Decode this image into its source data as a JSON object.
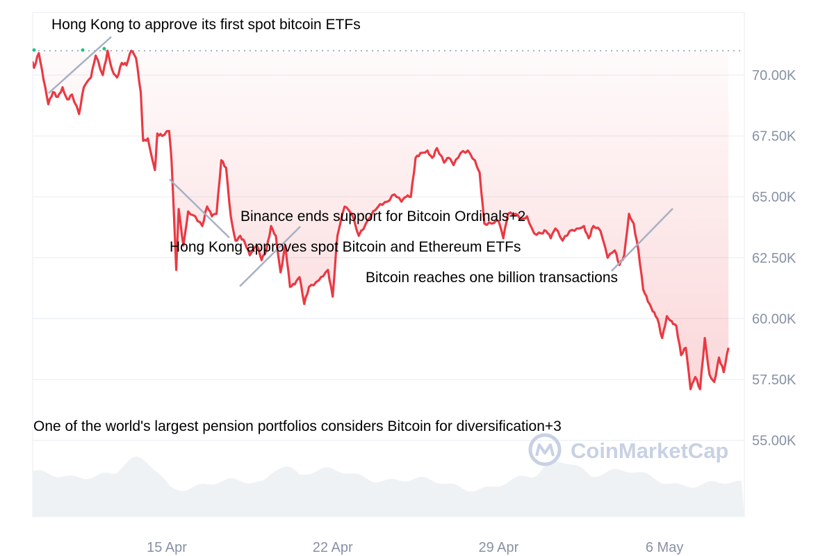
{
  "chart_data": {
    "type": "line",
    "y_ticks": [
      "70.00K",
      "67.50K",
      "65.00K",
      "62.50K",
      "60.00K",
      "57.50K",
      "55.00K"
    ],
    "y_tick_values": [
      70000,
      67500,
      65000,
      62500,
      60000,
      57500,
      55000
    ],
    "x_ticks": [
      "15 Apr",
      "22 Apr",
      "29 Apr",
      "6 May"
    ],
    "x_tick_days": [
      15,
      22,
      29,
      36
    ],
    "ylim": [
      55000,
      71000
    ],
    "xlim_days": [
      9.25,
      39.3
    ],
    "reference_value": 71000,
    "grid": true,
    "colors": {
      "line": "#ea3943",
      "fill": "#ea3943",
      "reference": "#a6b0c3",
      "grid": "#eff2f5",
      "volume": "#eff2f5",
      "up_marker": "#16c784",
      "annotation_line": "#a6b0c3"
    },
    "series": [
      {
        "points": [
          [
            9.25,
            70800
          ],
          [
            9.4,
            70300
          ],
          [
            9.6,
            70900
          ],
          [
            9.8,
            69800
          ],
          [
            10.0,
            68800
          ],
          [
            10.2,
            69300
          ],
          [
            10.4,
            69100
          ],
          [
            10.6,
            69500
          ],
          [
            10.8,
            69000
          ],
          [
            11.0,
            69200
          ],
          [
            11.3,
            68400
          ],
          [
            11.5,
            69500
          ],
          [
            11.8,
            69900
          ],
          [
            12.0,
            70800
          ],
          [
            12.3,
            70000
          ],
          [
            12.5,
            71000
          ],
          [
            12.7,
            70200
          ],
          [
            12.9,
            69900
          ],
          [
            13.1,
            70500
          ],
          [
            13.3,
            70400
          ],
          [
            13.5,
            71000
          ],
          [
            13.7,
            70700
          ],
          [
            13.9,
            69300
          ],
          [
            14.0,
            67300
          ],
          [
            14.2,
            67400
          ],
          [
            14.5,
            66100
          ],
          [
            14.6,
            67600
          ],
          [
            14.8,
            67500
          ],
          [
            15.1,
            67700
          ],
          [
            15.2,
            66500
          ],
          [
            15.4,
            62000
          ],
          [
            15.5,
            64500
          ],
          [
            15.7,
            63000
          ],
          [
            15.9,
            64400
          ],
          [
            16.2,
            64200
          ],
          [
            16.5,
            63800
          ],
          [
            16.7,
            64600
          ],
          [
            16.9,
            64200
          ],
          [
            17.1,
            64300
          ],
          [
            17.3,
            66500
          ],
          [
            17.5,
            66200
          ],
          [
            17.7,
            64200
          ],
          [
            17.9,
            63200
          ],
          [
            18.1,
            63400
          ],
          [
            18.3,
            63100
          ],
          [
            18.5,
            62600
          ],
          [
            18.8,
            63000
          ],
          [
            19.0,
            62400
          ],
          [
            19.2,
            62800
          ],
          [
            19.4,
            63800
          ],
          [
            19.6,
            63400
          ],
          [
            19.8,
            61900
          ],
          [
            20.0,
            63000
          ],
          [
            20.2,
            61300
          ],
          [
            20.4,
            61400
          ],
          [
            20.6,
            61700
          ],
          [
            20.8,
            60600
          ],
          [
            21.0,
            61300
          ],
          [
            21.3,
            61500
          ],
          [
            21.5,
            61700
          ],
          [
            21.8,
            62000
          ],
          [
            22.0,
            60900
          ],
          [
            22.2,
            63400
          ],
          [
            22.5,
            64600
          ],
          [
            22.8,
            64300
          ],
          [
            23.1,
            63400
          ],
          [
            23.4,
            63900
          ],
          [
            23.7,
            64400
          ],
          [
            24.0,
            64700
          ],
          [
            24.3,
            64800
          ],
          [
            24.6,
            65100
          ],
          [
            24.9,
            64800
          ],
          [
            25.1,
            65000
          ],
          [
            25.3,
            65000
          ],
          [
            25.5,
            66600
          ],
          [
            25.7,
            66800
          ],
          [
            26.0,
            66900
          ],
          [
            26.2,
            66600
          ],
          [
            26.4,
            67000
          ],
          [
            26.7,
            66400
          ],
          [
            26.9,
            66600
          ],
          [
            27.1,
            66300
          ],
          [
            27.4,
            66800
          ],
          [
            27.7,
            66900
          ],
          [
            28.0,
            66500
          ],
          [
            28.2,
            66000
          ],
          [
            28.4,
            63900
          ],
          [
            28.7,
            63900
          ],
          [
            29.0,
            64000
          ],
          [
            29.2,
            63300
          ],
          [
            29.4,
            64300
          ],
          [
            29.7,
            64300
          ],
          [
            30.0,
            64100
          ],
          [
            30.2,
            64200
          ],
          [
            30.5,
            63500
          ],
          [
            30.8,
            63500
          ],
          [
            31.0,
            63600
          ],
          [
            31.2,
            63300
          ],
          [
            31.4,
            63700
          ],
          [
            31.7,
            63200
          ],
          [
            32.0,
            63600
          ],
          [
            32.3,
            63700
          ],
          [
            32.6,
            63800
          ],
          [
            32.8,
            63300
          ],
          [
            33.0,
            63800
          ],
          [
            33.3,
            63600
          ],
          [
            33.6,
            62500
          ],
          [
            33.9,
            62800
          ],
          [
            34.1,
            62200
          ],
          [
            34.3,
            62600
          ],
          [
            34.5,
            64300
          ],
          [
            34.7,
            63900
          ],
          [
            34.9,
            62800
          ],
          [
            35.1,
            61200
          ],
          [
            35.3,
            60700
          ],
          [
            35.5,
            60300
          ],
          [
            35.7,
            60000
          ],
          [
            35.9,
            59200
          ],
          [
            36.1,
            60100
          ],
          [
            36.3,
            59900
          ],
          [
            36.5,
            59700
          ],
          [
            36.7,
            58500
          ],
          [
            36.9,
            58800
          ],
          [
            37.1,
            57100
          ],
          [
            37.3,
            57600
          ],
          [
            37.5,
            57100
          ],
          [
            37.7,
            59200
          ],
          [
            37.9,
            57700
          ],
          [
            38.1,
            57400
          ],
          [
            38.3,
            58400
          ],
          [
            38.5,
            57800
          ],
          [
            38.7,
            58800
          ]
        ]
      }
    ],
    "annotations": [
      "Hong Kong to approve its first spot bitcoin ETFs",
      "Binance ends support for Bitcoin Ordinals+2",
      "Hong Kong approves spot Bitcoin and Ethereum ETFs",
      "Bitcoin reaches one billion transactions",
      "One of the world's largest pension portfolios considers Bitcoin for diversification+3"
    ],
    "watermark": "CoinMarketCap"
  }
}
